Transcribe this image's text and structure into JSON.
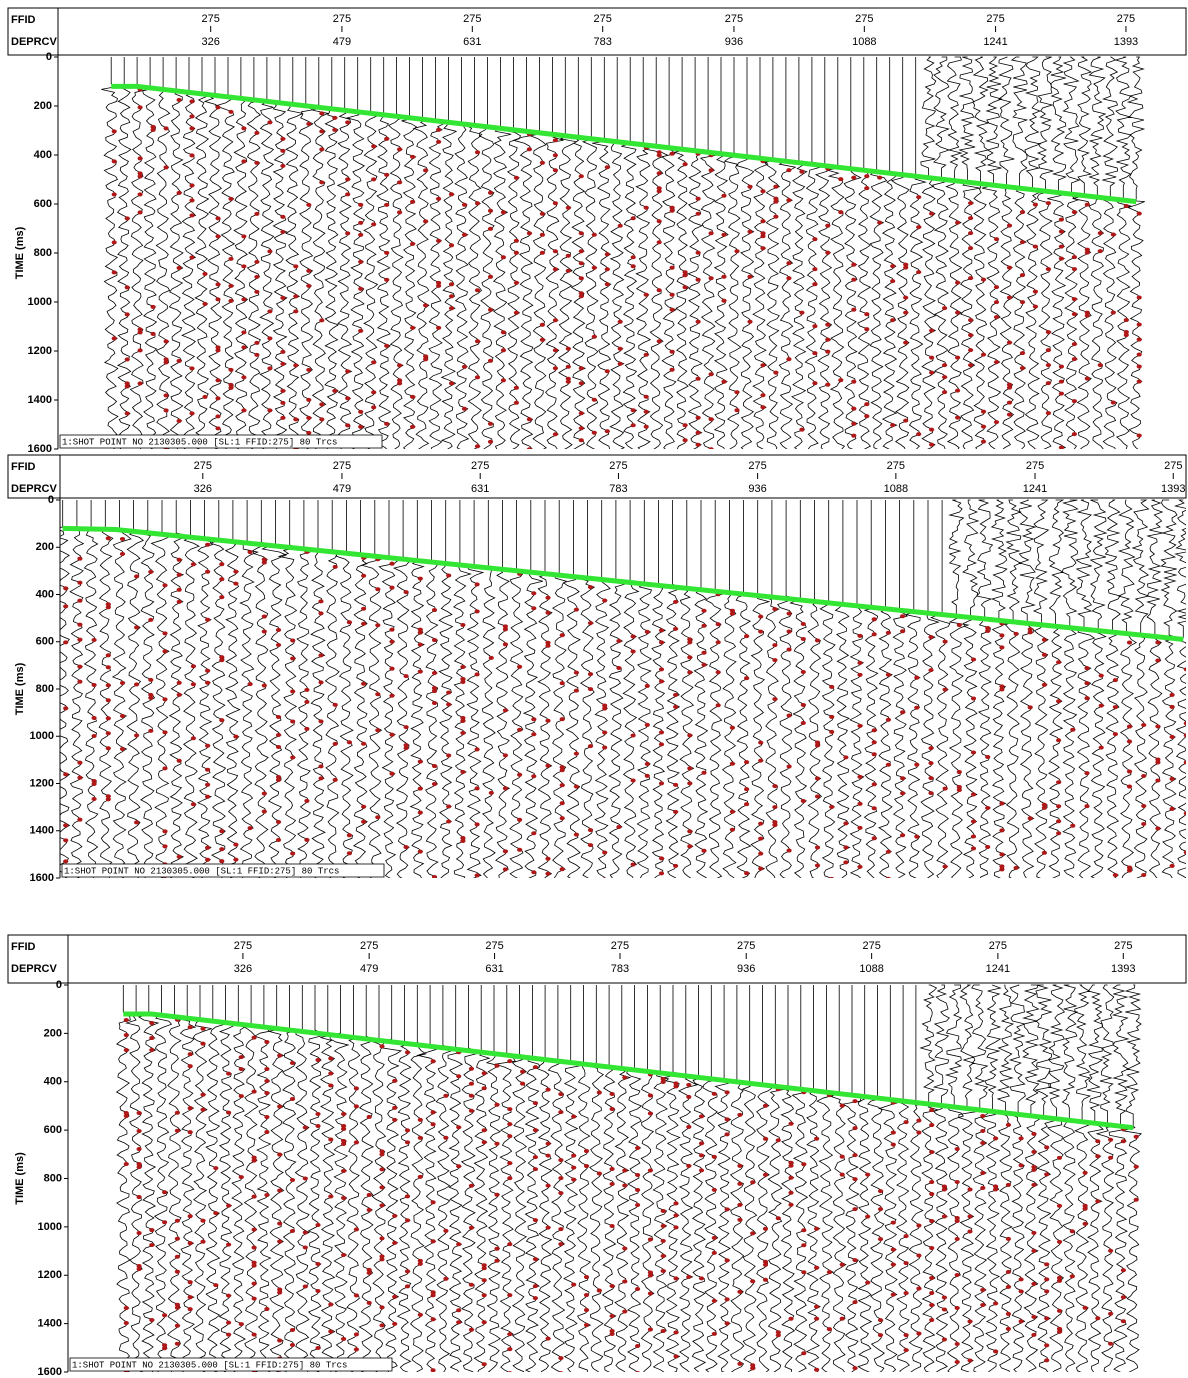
{
  "chart_data": [
    {
      "type": "seismic",
      "header_labels": [
        "FFID",
        "DEPRCV"
      ],
      "ylabel": "TIME (ms)",
      "ffid_labels": [
        275,
        275,
        275,
        275,
        275,
        275,
        275,
        275
      ],
      "xlim": [
        148,
        1463
      ],
      "xticks": [
        326,
        479,
        631,
        783,
        936,
        1088,
        1241,
        1393
      ],
      "ylim": [
        0,
        1600
      ],
      "yticks": [
        0,
        200,
        400,
        600,
        800,
        1000,
        1200,
        1400,
        1600
      ],
      "first_break": {
        "color": "#33e633",
        "x": [
          210,
          240,
          1405
        ],
        "y": [
          120,
          120,
          590
        ]
      },
      "footer": "1:SHOT POINT NO 2130305.000 [SL:1 FFID:275] 80 Trcs"
    },
    {
      "type": "seismic",
      "header_labels": [
        "FFID",
        "DEPRCV"
      ],
      "ylabel": "TIME (ms)",
      "ffid_labels": [
        275,
        275,
        275,
        275,
        275,
        275,
        275,
        275
      ],
      "xlim": [
        169,
        1407
      ],
      "xticks": [
        326,
        479,
        631,
        783,
        936,
        1088,
        1241,
        1393
      ],
      "ylim": [
        0,
        1600
      ],
      "yticks": [
        0,
        200,
        400,
        600,
        800,
        1000,
        1200,
        1400,
        1600
      ],
      "first_break": {
        "color": "#33e633",
        "x": [
          172,
          230,
          1404
        ],
        "y": [
          120,
          125,
          590
        ]
      },
      "footer": "1:SHOT POINT NO 2130305.000 [SL:1 FFID:275] 80 Trcs"
    },
    {
      "type": "seismic",
      "header_labels": [
        "FFID",
        "DEPRCV"
      ],
      "ylabel": "TIME (ms)",
      "ffid_labels": [
        275,
        275,
        275,
        275,
        275,
        275,
        275,
        275
      ],
      "xlim": [
        114,
        1469
      ],
      "xticks": [
        326,
        479,
        631,
        783,
        936,
        1088,
        1241,
        1393
      ],
      "ylim": [
        0,
        1600
      ],
      "yticks": [
        0,
        200,
        400,
        600,
        800,
        1000,
        1200,
        1400,
        1600
      ],
      "first_break": {
        "color": "#33e633",
        "x": [
          181,
          215,
          1405
        ],
        "y": [
          120,
          120,
          590
        ]
      },
      "footer": "1:SHOT POINT NO 2130305.000 [SL:1 FFID:275] 80 Trcs"
    }
  ]
}
